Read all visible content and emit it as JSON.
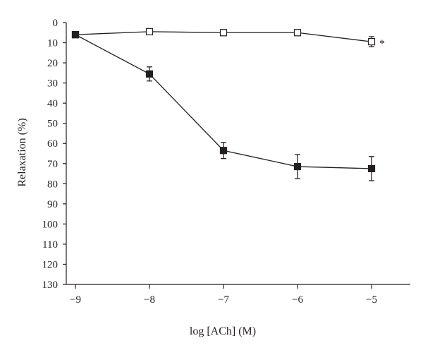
{
  "chart_data": {
    "type": "line",
    "title": "",
    "xlabel": "log [ACh] (M)",
    "ylabel": "Relaxation (%)",
    "x": [
      -9,
      -8,
      -7,
      -6,
      -5
    ],
    "x_tick_labels": [
      "−9",
      "−8",
      "−7",
      "−6",
      "−5"
    ],
    "xlim": [
      -9.1,
      -4.5
    ],
    "ylim": [
      0,
      130
    ],
    "y_inverted": true,
    "y_ticks": [
      0,
      10,
      20,
      30,
      40,
      50,
      60,
      70,
      80,
      90,
      100,
      110,
      120,
      130
    ],
    "grid": false,
    "legend": "none",
    "series": [
      {
        "marker": "open-square",
        "color": "#231f20",
        "values": [
          6,
          4.5,
          5,
          5,
          9.5
        ],
        "error": [
          1,
          1,
          1.5,
          1.5,
          2.5
        ],
        "annotation": {
          "text": "*",
          "at_index": 4
        }
      },
      {
        "marker": "filled-square",
        "color": "#231f20",
        "values": [
          6,
          25.5,
          63.5,
          71.5,
          72.5
        ],
        "error": [
          1,
          3.5,
          4,
          6,
          6
        ]
      }
    ]
  }
}
